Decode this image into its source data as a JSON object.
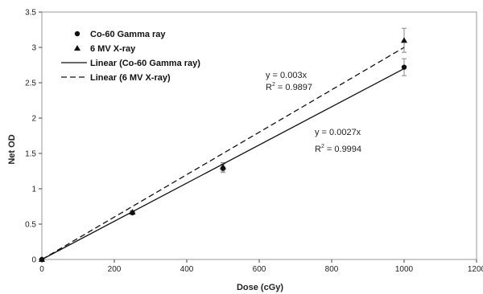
{
  "chart_data": {
    "type": "scatter",
    "xlabel": "Dose (cGy)",
    "ylabel": "Net OD",
    "xlim": [
      0,
      1200
    ],
    "ylim": [
      0,
      3.5
    ],
    "x_ticks": [
      "0",
      "200",
      "400",
      "600",
      "800",
      "1000",
      "1200"
    ],
    "y_ticks": [
      "0",
      "0.5",
      "1",
      "1.5",
      "2",
      "2.5",
      "3",
      "3.5"
    ],
    "grid": false,
    "legend_position": "top-left",
    "series": [
      {
        "name": "Co-60 Gamma ray",
        "marker": "circle",
        "x": [
          0,
          250,
          500,
          1000
        ],
        "y": [
          0,
          0.66,
          1.29,
          2.72
        ],
        "error": [
          0,
          0.02,
          0.06,
          0.12
        ]
      },
      {
        "name": "6 MV X-ray",
        "marker": "triangle",
        "x": [
          0,
          250,
          500,
          1000
        ],
        "y": [
          0,
          0.67,
          1.31,
          3.1
        ],
        "error": [
          0,
          0.02,
          0.06,
          0.17
        ]
      }
    ],
    "trendlines": [
      {
        "name": "Linear (Co-60 Gamma ray)",
        "style": "solid",
        "slope": 0.0027,
        "equation": "y = 0.0027x",
        "r2_label": "R",
        "r2_value": " = 0.9994"
      },
      {
        "name": "Linear (6 MV X-ray)",
        "style": "dashed",
        "slope": 0.003,
        "equation": "y = 0.003x",
        "r2_label": "R",
        "r2_value": " = 0.9897"
      }
    ],
    "superscript": "2",
    "colors": {
      "marks": "#111111",
      "axis": "#444444",
      "error": "#888888"
    }
  }
}
